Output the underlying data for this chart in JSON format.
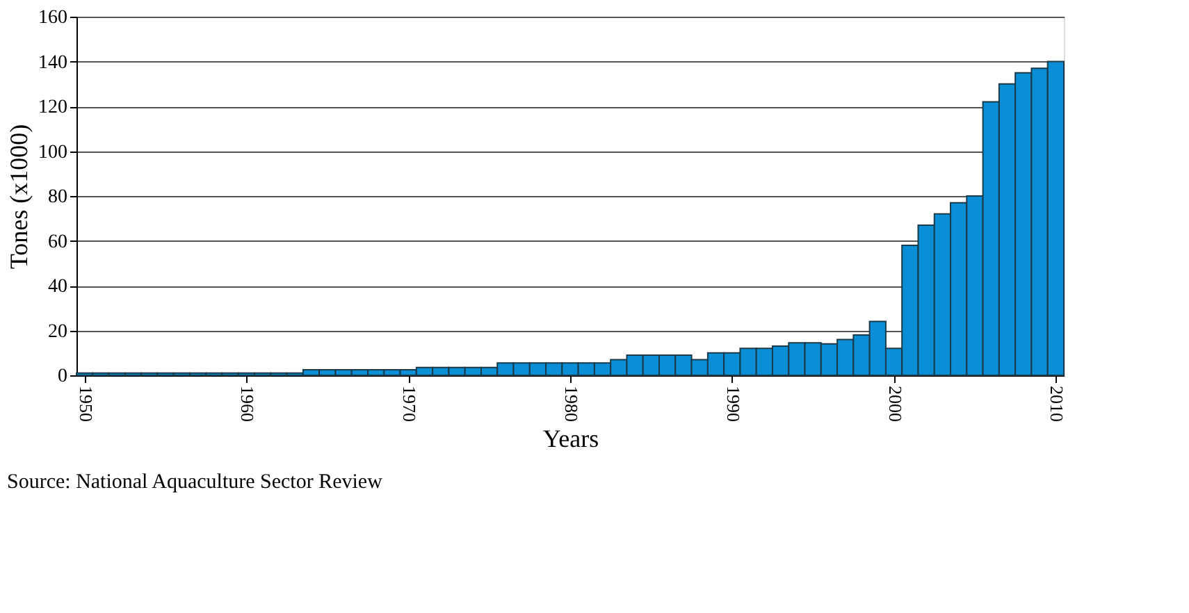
{
  "chart_data": {
    "type": "bar",
    "xlabel": "Years",
    "ylabel": "Tones (x1000)",
    "x": [
      1950,
      1951,
      1952,
      1953,
      1954,
      1955,
      1956,
      1957,
      1958,
      1959,
      1960,
      1961,
      1962,
      1963,
      1964,
      1965,
      1966,
      1967,
      1968,
      1969,
      1970,
      1971,
      1972,
      1973,
      1974,
      1975,
      1976,
      1977,
      1978,
      1979,
      1980,
      1981,
      1982,
      1983,
      1984,
      1985,
      1986,
      1987,
      1988,
      1989,
      1990,
      1991,
      1992,
      1993,
      1994,
      1995,
      1996,
      1997,
      1998,
      1999,
      2000,
      2001,
      2002,
      2003,
      2004,
      2005,
      2006,
      2007,
      2008,
      2009,
      2010
    ],
    "values": [
      1,
      1,
      1,
      1,
      1,
      1,
      1,
      1,
      1,
      1,
      1,
      1,
      1,
      1,
      2.5,
      2.5,
      2.5,
      2.5,
      2.5,
      2.5,
      2.5,
      3.5,
      3.5,
      3.5,
      3.5,
      3.5,
      5.5,
      5.5,
      5.5,
      5.5,
      5.5,
      5.5,
      5.5,
      7,
      9,
      9,
      9,
      9,
      7,
      10,
      10,
      12,
      12,
      13,
      14.5,
      14.5,
      14,
      16,
      18,
      24,
      12,
      58,
      67,
      72,
      77,
      80,
      122,
      130,
      135,
      137,
      140
    ],
    "color": "#0a8fd6",
    "xlim": [
      1949.5,
      2010.5
    ],
    "xticks": [
      1950,
      1960,
      1970,
      1980,
      1990,
      2000,
      2010
    ],
    "ylim": [
      0,
      160
    ],
    "yticks": [
      0,
      20,
      40,
      60,
      80,
      100,
      120,
      140,
      160
    ],
    "grid": "y",
    "annotations": [
      "Source: National  Aquaculture Sector Review"
    ]
  }
}
